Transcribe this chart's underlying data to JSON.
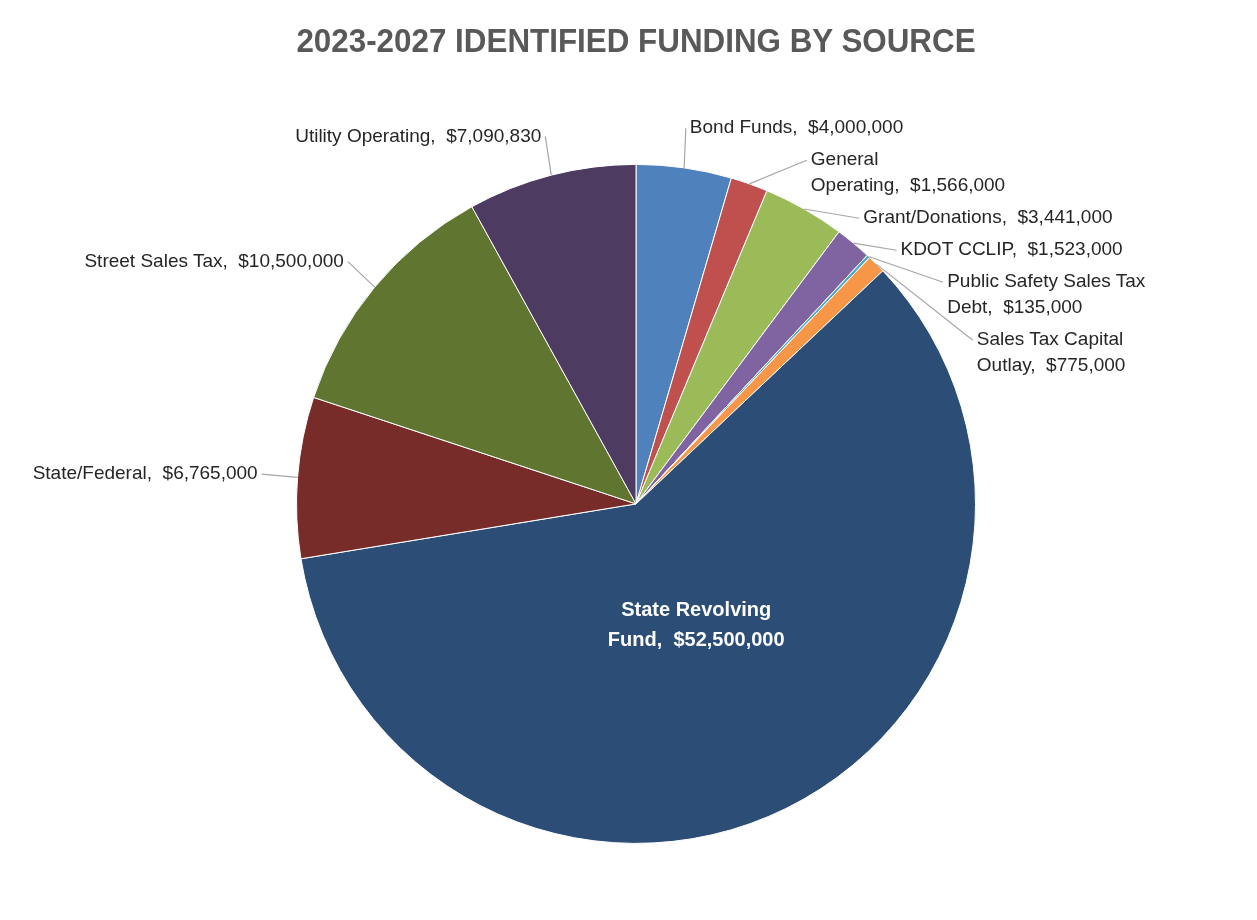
{
  "chart_data": {
    "type": "pie",
    "title": "2023-2027 IDENTIFIED FUNDING BY SOURCE",
    "categories": [
      "Bond Funds",
      "General Operating",
      "Grant/Donations",
      "KDOT CCLIP",
      "Public Safety Sales Tax Debt",
      "Sales Tax Capital Outlay",
      "State Revolving Fund",
      "State/Federal",
      "Street Sales Tax",
      "Utility Operating"
    ],
    "values": [
      4000000,
      1566000,
      3441000,
      1523000,
      135000,
      775000,
      52500000,
      6765000,
      10500000,
      7090830
    ],
    "value_labels": [
      "$4,000,000",
      "$1,566,000",
      "$3,441,000",
      "$1,523,000",
      "$135,000",
      "$775,000",
      "$52,500,000",
      "$6,765,000",
      "$10,500,000",
      "$7,090,830"
    ],
    "colors": [
      "#4f81bd",
      "#c0504d",
      "#9bbb59",
      "#8064a2",
      "#4bacc6",
      "#f79646",
      "#2c4d75",
      "#772c2a",
      "#5f7530",
      "#4d3b62"
    ],
    "legend": false
  }
}
